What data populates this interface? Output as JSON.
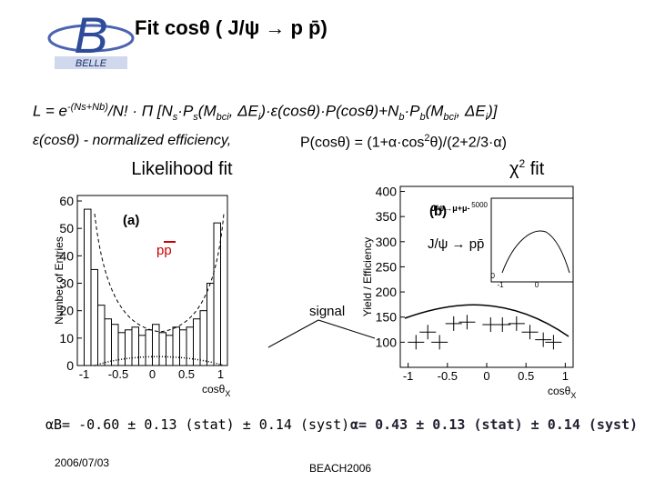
{
  "header": {
    "title": "Fit cosθ ( J/ψ → p p̄)",
    "logo_text": "BELLE"
  },
  "formula": {
    "likelihood_parts": [
      "L = e",
      "-(Ns+Nb)",
      "/N! · Π [N",
      "s",
      "·P",
      "s",
      "(M",
      "bci",
      ", ΔE",
      "i",
      ")·ε(cosθ)·P(cosθ)+N",
      "b",
      "·P",
      "b",
      "(M",
      "bci",
      ", ΔE",
      "i",
      ")]"
    ],
    "efficiency": "ε(cosθ)  -  normalized efficiency,",
    "angular_parts": [
      "P(cosθ) = (1+α·cos",
      "2",
      "θ)/(2+2/3·α)"
    ]
  },
  "chart_data": [
    {
      "type": "histogram",
      "title": "Likelihood fit",
      "y_label": "Number of Entries",
      "x_label": "cosθ",
      "x_label_sub": "X",
      "panel_label": "(a)",
      "annotation": "pp",
      "bins": [
        -1,
        -0.9,
        -0.8,
        -0.7,
        -0.6,
        -0.5,
        -0.4,
        -0.3,
        -0.2,
        -0.1,
        0,
        0.1,
        0.2,
        0.3,
        0.4,
        0.5,
        0.6,
        0.7,
        0.8,
        0.9,
        1
      ],
      "values": [
        57,
        35,
        22,
        17,
        15,
        12,
        13,
        14,
        11,
        13,
        15,
        12,
        11,
        14,
        13,
        14,
        17,
        20,
        30,
        52
      ],
      "color": "#000000",
      "xlim": [
        -1.1,
        1.1
      ],
      "xticks": [
        -1,
        -0.5,
        0,
        0.5,
        1
      ],
      "ylim": [
        0,
        62
      ],
      "yticks": [
        0,
        10,
        20,
        30,
        40,
        50,
        60
      ]
    },
    {
      "type": "scatter",
      "title_parts": [
        "χ",
        "2",
        " fit"
      ],
      "y_label": "Yield / Efficiency",
      "x_label": "cosθ",
      "x_label_sub": "X",
      "panel_label": "(b)",
      "annotation": "J/ψ → pp̄",
      "x": [
        -0.9,
        -0.75,
        -0.6,
        -0.42,
        -0.25,
        0.05,
        0.2,
        0.38,
        0.55,
        0.72,
        0.85
      ],
      "values": [
        100,
        120,
        100,
        137,
        140,
        135,
        135,
        137,
        120,
        105,
        100
      ],
      "color": "#000000",
      "xlim": [
        -1.1,
        1.1
      ],
      "xticks": [
        -1,
        -0.5,
        0,
        0.5,
        1
      ],
      "ylim": [
        50,
        410
      ],
      "yticks": [
        100,
        150,
        200,
        250,
        300,
        350,
        400
      ],
      "inset": {
        "label": "J/ψ→μ+μ-",
        "ytick_top": 5000,
        "ytick_bottom": 0,
        "xticks": [
          -1,
          0
        ]
      }
    }
  ],
  "annotations": {
    "signal": "signal"
  },
  "results": {
    "alpha_b": "αB= -0.60  ± 0.13 (stat) ± 0.14 (syst)",
    "alpha": "α= 0.43 ± 0.13 (stat) ± 0.14 (syst)"
  },
  "footer": {
    "date": "2006/07/03",
    "conference": "BEACH2006"
  }
}
